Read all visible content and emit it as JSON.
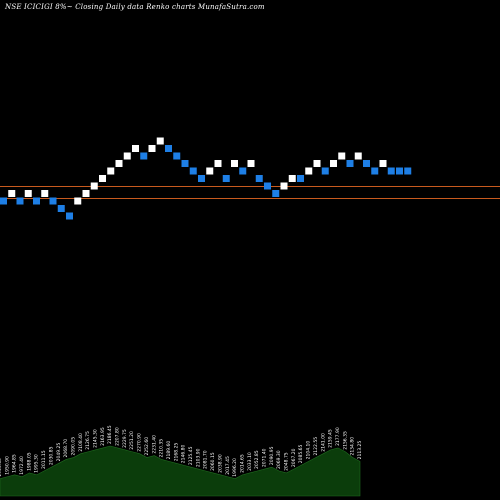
{
  "chart_data": {
    "type": "renko",
    "title": "NSE ICICIGI 8%~  Closing Daily data  Renko  charts MunafaSutra.com",
    "colors": {
      "background": "#000000",
      "up_brick": "#ffffff",
      "down_brick": "#1e7fe6",
      "reference_line": "#c85a1e",
      "volume_area": "#0b3d0b",
      "volume_text": "#ffffff"
    },
    "reference_lines": [
      1,
      0
    ],
    "bricks": [
      {
        "dir": "down",
        "level": 2
      },
      {
        "dir": "up",
        "level": 3
      },
      {
        "dir": "down",
        "level": 2
      },
      {
        "dir": "up",
        "level": 3
      },
      {
        "dir": "down",
        "level": 2
      },
      {
        "dir": "up",
        "level": 3
      },
      {
        "dir": "down",
        "level": 2
      },
      {
        "dir": "down",
        "level": 1
      },
      {
        "dir": "down",
        "level": 0
      },
      {
        "dir": "up",
        "level": 2
      },
      {
        "dir": "up",
        "level": 3
      },
      {
        "dir": "up",
        "level": 4
      },
      {
        "dir": "up",
        "level": 5
      },
      {
        "dir": "up",
        "level": 6
      },
      {
        "dir": "up",
        "level": 7
      },
      {
        "dir": "up",
        "level": 8
      },
      {
        "dir": "up",
        "level": 9
      },
      {
        "dir": "down",
        "level": 8
      },
      {
        "dir": "up",
        "level": 9
      },
      {
        "dir": "up",
        "level": 10
      },
      {
        "dir": "down",
        "level": 9
      },
      {
        "dir": "down",
        "level": 8
      },
      {
        "dir": "down",
        "level": 7
      },
      {
        "dir": "down",
        "level": 6
      },
      {
        "dir": "down",
        "level": 5
      },
      {
        "dir": "up",
        "level": 6
      },
      {
        "dir": "up",
        "level": 7
      },
      {
        "dir": "down",
        "level": 5
      },
      {
        "dir": "up",
        "level": 7
      },
      {
        "dir": "down",
        "level": 6
      },
      {
        "dir": "up",
        "level": 7
      },
      {
        "dir": "down",
        "level": 5
      },
      {
        "dir": "down",
        "level": 4
      },
      {
        "dir": "down",
        "level": 3
      },
      {
        "dir": "up",
        "level": 4
      },
      {
        "dir": "up",
        "level": 5
      },
      {
        "dir": "down",
        "level": 5
      },
      {
        "dir": "up",
        "level": 6
      },
      {
        "dir": "up",
        "level": 7
      },
      {
        "dir": "down",
        "level": 6
      },
      {
        "dir": "up",
        "level": 7
      },
      {
        "dir": "up",
        "level": 8
      },
      {
        "dir": "down",
        "level": 7
      },
      {
        "dir": "up",
        "level": 8
      },
      {
        "dir": "down",
        "level": 7
      },
      {
        "dir": "down",
        "level": 6
      },
      {
        "dir": "up",
        "level": 7
      },
      {
        "dir": "down",
        "level": 6
      },
      {
        "dir": "down",
        "level": 6
      },
      {
        "dir": "down",
        "level": 6
      }
    ],
    "volume": {
      "values": [
        18,
        20,
        22,
        20,
        24,
        22,
        26,
        30,
        34,
        38,
        40,
        44,
        46,
        48,
        50,
        52,
        50,
        48,
        46,
        44,
        40,
        42,
        38,
        36,
        34,
        32,
        30,
        28,
        26,
        24,
        22,
        20,
        18,
        22,
        24,
        26,
        28,
        30,
        26,
        24,
        28,
        32,
        36,
        40,
        44,
        48,
        50,
        46,
        40,
        36
      ],
      "labels": [
        "1953.60",
        "1950.90",
        "1964.85",
        "1972.40",
        "1988.05",
        "1995.30",
        "2011.15",
        "2030.85",
        "2049.25",
        "2068.70",
        "2090.05",
        "2108.40",
        "2126.75",
        "2145.30",
        "2163.95",
        "2186.45",
        "2207.80",
        "2229.75",
        "2251.20",
        "2270.90",
        "2252.60",
        "2231.40",
        "2210.35",
        "2189.60",
        "2168.25",
        "2146.80",
        "2125.45",
        "2103.90",
        "2081.70",
        "2060.15",
        "2038.90",
        "2017.45",
        "1996.20",
        "2014.65",
        "2033.10",
        "2052.85",
        "2071.40",
        "2090.95",
        "2069.30",
        "2048.75",
        "2067.20",
        "2085.65",
        "2104.10",
        "2122.55",
        "2141.00",
        "2159.45",
        "2177.90",
        "2156.35",
        "2134.80",
        "2113.25"
      ]
    }
  }
}
